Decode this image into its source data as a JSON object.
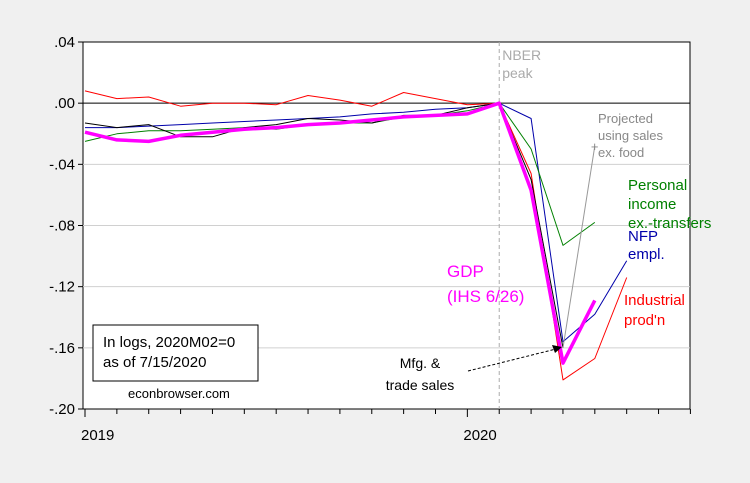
{
  "chart_data": {
    "type": "line",
    "title": "",
    "xlabel": "",
    "ylabel": "",
    "x": [
      "2019M01",
      "2019M02",
      "2019M03",
      "2019M04",
      "2019M05",
      "2019M06",
      "2019M07",
      "2019M08",
      "2019M09",
      "2019M10",
      "2019M11",
      "2019M12",
      "2020M01",
      "2020M02",
      "2020M03",
      "2020M04",
      "2020M05",
      "2020M06"
    ],
    "xlim": [
      "2019M01",
      "2020M08"
    ],
    "ylim": [
      -0.2,
      0.04
    ],
    "y_ticks": [
      0.04,
      0.0,
      -0.04,
      -0.08,
      -0.12,
      -0.16,
      -0.2
    ],
    "y_tick_labels": [
      ".04",
      ".00",
      "-.04",
      "-.08",
      "-.12",
      "-.16",
      "-.20"
    ],
    "x_tick_labels": [
      {
        "label": "2019",
        "x": "2019M01"
      },
      {
        "label": "2020",
        "x": "2020M01"
      }
    ],
    "grid": "horizontal",
    "series": [
      {
        "name": "Industrial prod'n",
        "color": "#ff0000",
        "values": [
          0.008,
          0.003,
          0.004,
          -0.002,
          0.0,
          0.0,
          -0.001,
          0.005,
          0.002,
          -0.002,
          0.007,
          0.003,
          -0.001,
          0,
          -0.046,
          -0.181,
          -0.167,
          -0.114
        ]
      },
      {
        "name": "NFP empl.",
        "color": "#0000aa",
        "values": [
          -0.016,
          -0.016,
          -0.015,
          -0.014,
          -0.013,
          -0.012,
          -0.011,
          -0.01,
          -0.009,
          -0.007,
          -0.006,
          -0.004,
          -0.003,
          0,
          -0.01,
          -0.156,
          -0.138,
          -0.103
        ]
      },
      {
        "name": "Personal income ex.-transfers",
        "color": "#008000",
        "values": [
          -0.025,
          -0.02,
          -0.018,
          -0.018,
          -0.017,
          -0.016,
          -0.017,
          -0.014,
          -0.013,
          -0.013,
          -0.009,
          -0.008,
          -0.005,
          0,
          -0.03,
          -0.093,
          -0.078,
          null
        ]
      },
      {
        "name": "Mfg. & trade sales",
        "color": "#000000",
        "values": [
          -0.013,
          -0.016,
          -0.014,
          -0.022,
          -0.022,
          -0.016,
          -0.014,
          -0.01,
          -0.011,
          -0.013,
          -0.008,
          -0.008,
          -0.003,
          0,
          -0.05,
          -0.16,
          null,
          null
        ]
      },
      {
        "name": "GDP (IHS 6/26)",
        "color": "#ff00ff",
        "values": [
          -0.019,
          -0.024,
          -0.025,
          -0.021,
          -0.019,
          -0.017,
          -0.016,
          -0.014,
          -0.013,
          -0.011,
          -0.009,
          -0.008,
          -0.007,
          0,
          -0.057,
          -0.17,
          -0.129,
          null
        ]
      },
      {
        "name": "Projected using sales ex. food",
        "color": "#999999",
        "values": [
          null,
          null,
          null,
          null,
          null,
          null,
          null,
          null,
          null,
          null,
          null,
          null,
          null,
          null,
          null,
          -0.16,
          -0.028,
          null
        ]
      }
    ],
    "vertical_line": {
      "x": "2020M02",
      "label1": "NBER",
      "label2": "peak",
      "color": "#aaaaaa"
    },
    "annotations": {
      "projected": [
        "Projected",
        "using sales",
        "ex. food"
      ],
      "personal_income": [
        "Personal",
        "income",
        "ex.-transfers"
      ],
      "nfp": [
        "NFP",
        "empl."
      ],
      "gdp": [
        "GDP",
        "(IHS 6/26)"
      ],
      "industrial": [
        "Industrial",
        "prod'n"
      ],
      "mfg": [
        "Mfg. &",
        "trade sales"
      ]
    },
    "note_box": [
      "In logs, 2020M02=0",
      "as of 7/15/2020"
    ],
    "credit": "econbrowser.com"
  }
}
